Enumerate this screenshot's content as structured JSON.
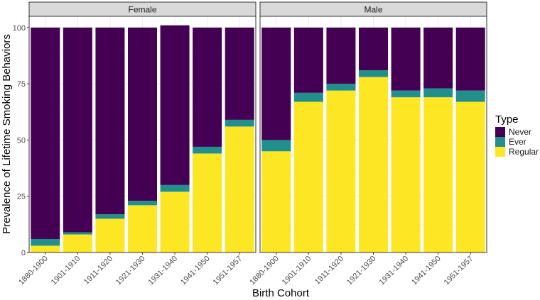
{
  "chart_data": {
    "type": "bar",
    "stacked": true,
    "facets": [
      "Female",
      "Male"
    ],
    "categories": [
      "1880-1900",
      "1901-1910",
      "1911-1920",
      "1921-1930",
      "1931-1940",
      "1941-1950",
      "1951-1957"
    ],
    "series": [
      {
        "name": "Regular",
        "color": "#fde725",
        "values": {
          "Female": [
            3,
            8,
            15,
            21,
            27,
            44,
            56
          ],
          "Male": [
            45,
            67,
            72,
            78,
            69,
            69,
            67
          ]
        }
      },
      {
        "name": "Ever",
        "color": "#21908c",
        "values": {
          "Female": [
            3,
            1,
            2,
            2,
            3,
            3,
            3
          ],
          "Male": [
            5,
            4,
            3,
            3,
            3,
            4,
            5
          ]
        }
      },
      {
        "name": "Never",
        "color": "#440154",
        "values": {
          "Female": [
            94,
            91,
            83,
            77,
            71,
            53,
            41
          ],
          "Male": [
            50,
            29,
            25,
            19,
            28,
            27,
            28
          ]
        }
      }
    ],
    "xlabel": "Birth Cohort",
    "ylabel": "Prevalence of Lifetime Smoking Behaviors",
    "ylim": [
      0,
      105
    ],
    "yticks": [
      0,
      25,
      50,
      75,
      100
    ],
    "legend": {
      "title": "Type",
      "entries": [
        "Never",
        "Ever",
        "Regular"
      ],
      "position": "right"
    }
  }
}
